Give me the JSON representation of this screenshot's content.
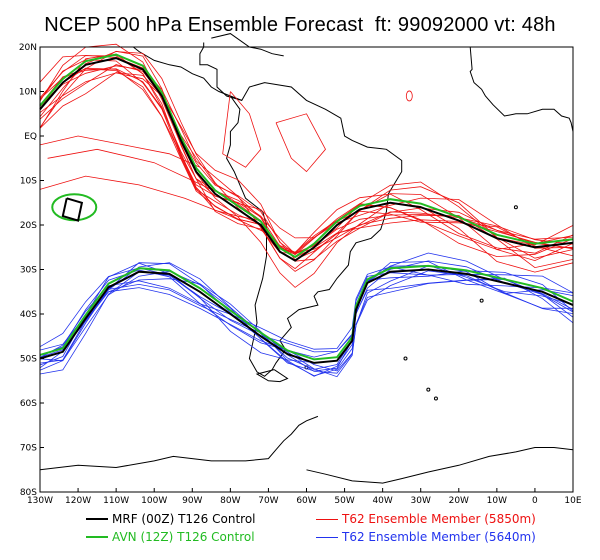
{
  "title": "NCEP 500 hPa Ensemble Forecast  ft: 99092000 vt: 48h",
  "map": {
    "lat_ticks": [
      "20N",
      "10N",
      "EQ",
      "10S",
      "20S",
      "30S",
      "40S",
      "50S",
      "60S",
      "70S",
      "80S"
    ],
    "lon_ticks": [
      "130W",
      "120W",
      "110W",
      "100W",
      "90W",
      "80W",
      "70W",
      "60W",
      "50W",
      "40W",
      "30W",
      "20W",
      "10W",
      "0",
      "10E"
    ],
    "coastline_color": "#000000"
  },
  "legend": [
    {
      "label": "MRF (00Z) T126 Control",
      "color": "#000000",
      "name": "legend-mrf"
    },
    {
      "label": "AVN (12Z) T126 Control",
      "color": "#22bb22",
      "name": "legend-avn"
    },
    {
      "label": "T62 Ensemble Member (5850m)",
      "color": "#ee1111",
      "name": "legend-5850"
    },
    {
      "label": "T62 Ensemble Member (5640m)",
      "color": "#2233ee",
      "name": "legend-5640"
    }
  ],
  "colors": {
    "mrf": "#000000",
    "avn": "#22bb22",
    "red": "#ee1111",
    "blue": "#2233ee"
  }
}
